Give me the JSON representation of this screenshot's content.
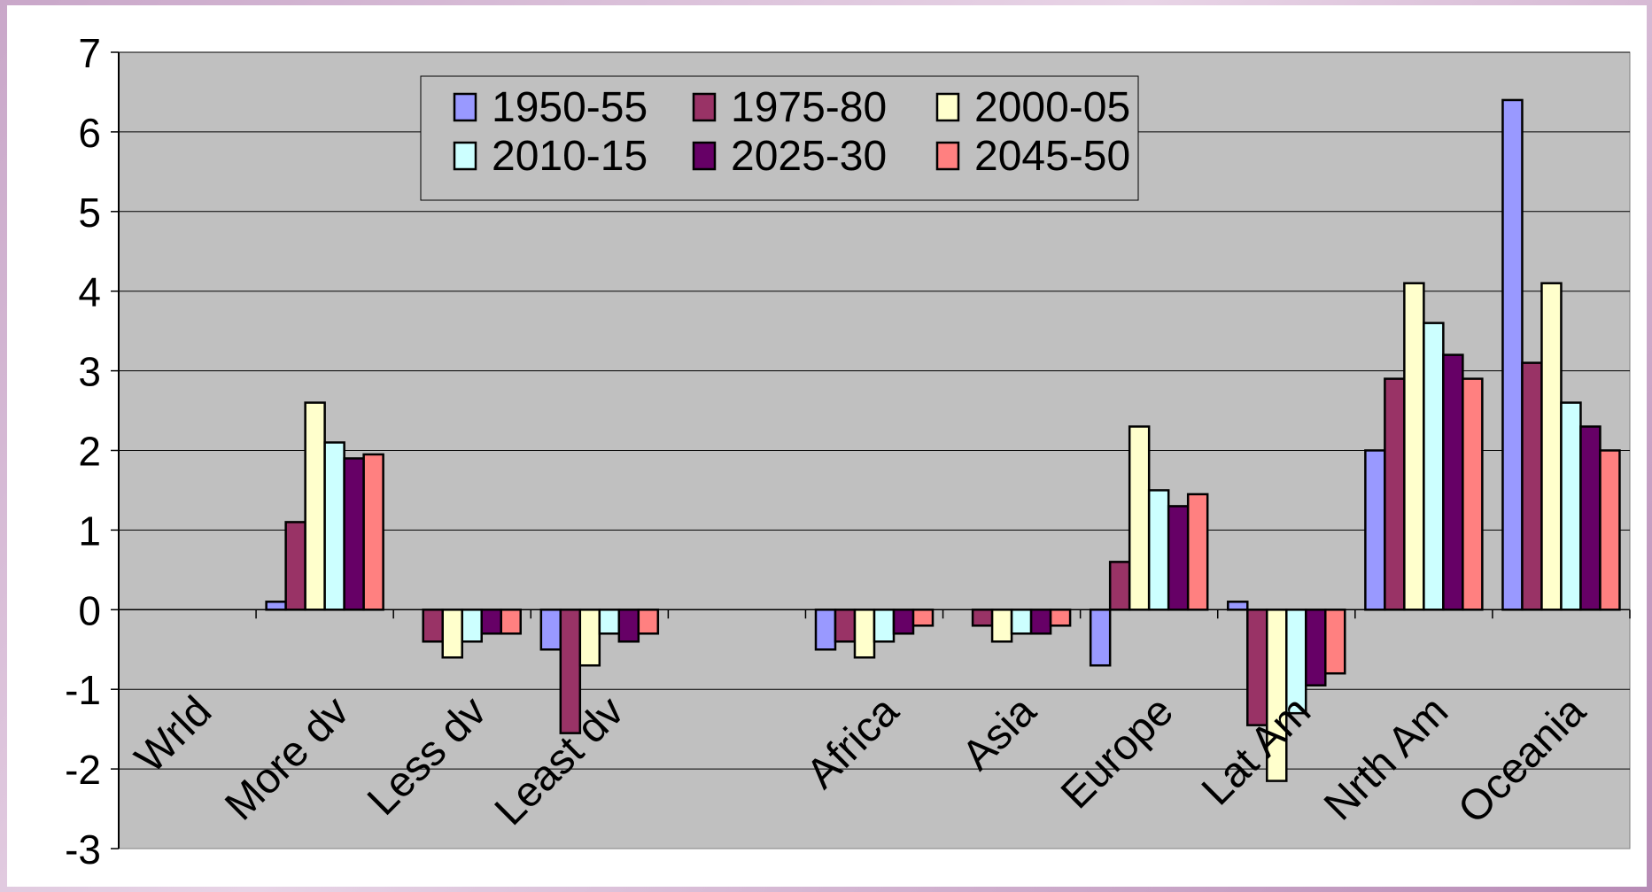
{
  "chart_data": {
    "type": "bar",
    "title": "",
    "xlabel": "",
    "ylabel": "",
    "ylim": [
      -3,
      7
    ],
    "yticks": [
      -3,
      -2,
      -1,
      0,
      1,
      2,
      3,
      4,
      5,
      6,
      7
    ],
    "grid": true,
    "legend_position": "top-center",
    "categories": [
      "Wrld",
      "More dv",
      "Less dv",
      "Least dv",
      "",
      "Africa",
      "Asia",
      "Europe",
      "Lat Am",
      "Nrth Am",
      "Oceania"
    ],
    "series": [
      {
        "name": "1950-55",
        "color": "#9999ff",
        "values": [
          0,
          0.1,
          0,
          -0.5,
          0,
          -0.5,
          0,
          -0.7,
          0.1,
          2.0,
          6.4
        ]
      },
      {
        "name": "1975-80",
        "color": "#993366",
        "values": [
          0,
          1.1,
          -0.4,
          -1.55,
          0,
          -0.4,
          -0.2,
          0.6,
          -1.45,
          2.9,
          3.1
        ]
      },
      {
        "name": "2000-05",
        "color": "#ffffcc",
        "values": [
          0,
          2.6,
          -0.6,
          -0.7,
          0,
          -0.6,
          -0.4,
          2.3,
          -2.15,
          4.1,
          4.1
        ]
      },
      {
        "name": "2010-15",
        "color": "#ccffff",
        "values": [
          0,
          2.1,
          -0.4,
          -0.3,
          0,
          -0.4,
          -0.3,
          1.5,
          -1.3,
          3.6,
          2.6
        ]
      },
      {
        "name": "2025-30",
        "color": "#660066",
        "values": [
          0,
          1.9,
          -0.3,
          -0.4,
          0,
          -0.3,
          -0.3,
          1.3,
          -0.95,
          3.2,
          2.3
        ]
      },
      {
        "name": "2045-50",
        "color": "#ff8080",
        "values": [
          0,
          1.95,
          -0.3,
          -0.3,
          0,
          -0.2,
          -0.2,
          1.45,
          -0.8,
          2.9,
          2.0
        ]
      }
    ],
    "colors": {
      "plot_bg": "#c0c0c0",
      "grid": "#000000",
      "page_bg": "#ffffff"
    }
  }
}
